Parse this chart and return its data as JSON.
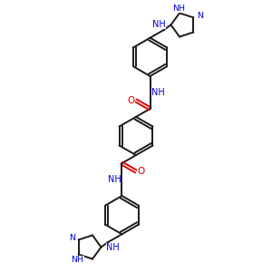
{
  "bg_color": "#ffffff",
  "bond_color": "#1a1a1a",
  "N_color": "#0000dd",
  "O_color": "#dd0000",
  "lw": 1.4,
  "figsize": [
    3.0,
    3.0
  ],
  "dpi": 100,
  "xlim": [
    55,
    245
  ],
  "ylim": [
    8,
    292
  ]
}
